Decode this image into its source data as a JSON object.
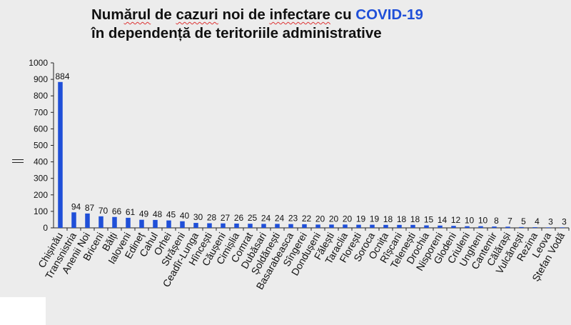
{
  "title": {
    "line1_pre": "Num",
    "line1_squiggle": "ărul",
    "line1_mid": " de ",
    "line1_squiggle2": "cazuri",
    "line1_mid2": " noi de ",
    "line1_squiggle3": "infectare",
    "line1_mid3": " cu ",
    "line1_highlight": "COVID-19",
    "line2": "în dependență de teritoriile administrative"
  },
  "colors": {
    "bar": "#1f4fd8",
    "title_highlight": "#1f4fd8",
    "background": "#ececec"
  },
  "chart_data": {
    "type": "bar",
    "title": "Numărul de cazuri noi de infectare cu COVID-19 în dependență de teritoriile administrative",
    "xlabel": "",
    "ylabel": "",
    "ylim": [
      0,
      1000
    ],
    "yticks": [
      0,
      100,
      200,
      300,
      400,
      500,
      600,
      700,
      800,
      900,
      1000
    ],
    "grid": false,
    "categories": [
      "Chișinău",
      "Transnistria",
      "Anenii Noi",
      "Briceni",
      "Bălți",
      "Ialoveni",
      "Edineț",
      "Cahul",
      "Orhei",
      "Strășeni",
      "Ceadîr-Lunga",
      "Hîncești",
      "Căușeni",
      "Cimișlia",
      "Comrat",
      "Dubăsari",
      "Șoldănești",
      "Basarabeasca",
      "Sîngerei",
      "Dondușeni",
      "Fălești",
      "Taraclia",
      "Florești",
      "Soroca",
      "Ocnița",
      "Rîșcani",
      "Telenești",
      "Drochia",
      "Nisporeni",
      "Glodeni",
      "Criuleni",
      "Ungheni",
      "Cantemir",
      "Călărași",
      "Vulcănești",
      "Rezina",
      "Leova",
      "Ștefan Vodă"
    ],
    "values": [
      884,
      94,
      87,
      70,
      66,
      61,
      49,
      48,
      45,
      40,
      30,
      28,
      27,
      26,
      25,
      24,
      24,
      23,
      22,
      20,
      20,
      20,
      19,
      19,
      18,
      18,
      18,
      15,
      14,
      12,
      10,
      10,
      8,
      7,
      5,
      4,
      3,
      3
    ]
  }
}
